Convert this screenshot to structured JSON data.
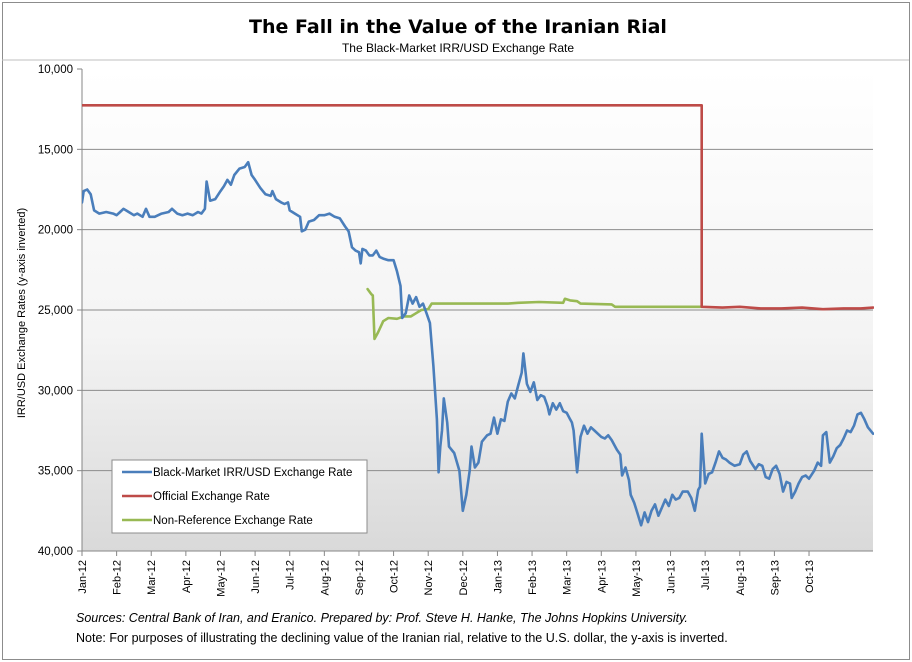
{
  "chart_data": {
    "type": "line",
    "title": "The Fall in the Value of the Iranian Rial",
    "subtitle": "The Black-Market IRR/USD Exchange Rate",
    "ylabel": "IRR/USD Exchange Rates (y-axis inverted)",
    "xlabel": "",
    "ylim": [
      10000,
      40000
    ],
    "y_inverted": true,
    "yticks": [
      "10,000",
      "15,000",
      "20,000",
      "25,000",
      "30,000",
      "35,000",
      "40,000"
    ],
    "ytick_values": [
      10000,
      15000,
      20000,
      25000,
      30000,
      35000,
      40000
    ],
    "xticks": [
      "Jan-12",
      "Feb-12",
      "Mar-12",
      "Apr-12",
      "May-12",
      "Jun-12",
      "Jul-12",
      "Aug-12",
      "Sep-12",
      "Oct-12",
      "Nov-12",
      "Dec-12",
      "Jan-13",
      "Feb-13",
      "Mar-13",
      "Apr-13",
      "May-13",
      "Jun-13",
      "Jul-13",
      "Aug-13",
      "Sep-13",
      "Oct-13"
    ],
    "x_unit": "months since Jan-12",
    "xlim": [
      0,
      22.85
    ],
    "grid": true,
    "legend_position": "bottom-left",
    "series": [
      {
        "name": "Black-Market IRR/USD Exchange Rate",
        "color": "#4a7ebb",
        "points": [
          [
            0,
            18300
          ],
          [
            0.05,
            17600
          ],
          [
            0.15,
            17500
          ],
          [
            0.25,
            17800
          ],
          [
            0.35,
            18800
          ],
          [
            0.5,
            19000
          ],
          [
            0.7,
            18900
          ],
          [
            0.9,
            19000
          ],
          [
            1.0,
            19100
          ],
          [
            1.1,
            18900
          ],
          [
            1.2,
            18700
          ],
          [
            1.35,
            18900
          ],
          [
            1.5,
            19100
          ],
          [
            1.6,
            19000
          ],
          [
            1.75,
            19200
          ],
          [
            1.85,
            18700
          ],
          [
            1.95,
            19200
          ],
          [
            2.1,
            19200
          ],
          [
            2.3,
            19000
          ],
          [
            2.5,
            18900
          ],
          [
            2.6,
            18700
          ],
          [
            2.75,
            19000
          ],
          [
            2.9,
            19100
          ],
          [
            3.05,
            19000
          ],
          [
            3.2,
            19100
          ],
          [
            3.35,
            18900
          ],
          [
            3.45,
            19000
          ],
          [
            3.55,
            18700
          ],
          [
            3.6,
            17000
          ],
          [
            3.7,
            18200
          ],
          [
            3.85,
            18100
          ],
          [
            4.0,
            17600
          ],
          [
            4.1,
            17300
          ],
          [
            4.2,
            16900
          ],
          [
            4.3,
            17200
          ],
          [
            4.4,
            16600
          ],
          [
            4.55,
            16200
          ],
          [
            4.7,
            16100
          ],
          [
            4.8,
            15800
          ],
          [
            4.9,
            16600
          ],
          [
            5.0,
            16900
          ],
          [
            5.15,
            17400
          ],
          [
            5.3,
            17800
          ],
          [
            5.45,
            17900
          ],
          [
            5.5,
            17600
          ],
          [
            5.6,
            18100
          ],
          [
            5.75,
            18300
          ],
          [
            5.85,
            18400
          ],
          [
            5.95,
            18300
          ],
          [
            6.0,
            18800
          ],
          [
            6.15,
            19000
          ],
          [
            6.3,
            19200
          ],
          [
            6.35,
            20100
          ],
          [
            6.45,
            20000
          ],
          [
            6.55,
            19500
          ],
          [
            6.7,
            19400
          ],
          [
            6.85,
            19100
          ],
          [
            7.0,
            19100
          ],
          [
            7.15,
            19000
          ],
          [
            7.3,
            19200
          ],
          [
            7.45,
            19300
          ],
          [
            7.6,
            19800
          ],
          [
            7.7,
            20100
          ],
          [
            7.8,
            21100
          ],
          [
            7.9,
            21300
          ],
          [
            8.0,
            21400
          ],
          [
            8.05,
            22100
          ],
          [
            8.1,
            21200
          ],
          [
            8.2,
            21300
          ],
          [
            8.3,
            21600
          ],
          [
            8.4,
            21600
          ],
          [
            8.5,
            21300
          ],
          [
            8.6,
            21700
          ],
          [
            8.7,
            21800
          ],
          [
            8.85,
            21900
          ],
          [
            9.0,
            21900
          ],
          [
            9.1,
            22600
          ],
          [
            9.2,
            23500
          ],
          [
            9.25,
            25500
          ],
          [
            9.35,
            25200
          ],
          [
            9.45,
            24100
          ],
          [
            9.55,
            24600
          ],
          [
            9.65,
            24200
          ],
          [
            9.75,
            24800
          ],
          [
            9.85,
            24600
          ],
          [
            9.95,
            25200
          ],
          [
            10.05,
            25800
          ],
          [
            10.15,
            28500
          ],
          [
            10.25,
            31800
          ],
          [
            10.3,
            35100
          ],
          [
            10.35,
            33500
          ],
          [
            10.4,
            32500
          ],
          [
            10.45,
            30500
          ],
          [
            10.55,
            32000
          ],
          [
            10.6,
            33500
          ],
          [
            10.75,
            33900
          ],
          [
            10.9,
            35000
          ],
          [
            11.0,
            37500
          ],
          [
            11.1,
            36500
          ],
          [
            11.2,
            35000
          ],
          [
            11.25,
            33500
          ],
          [
            11.35,
            34800
          ],
          [
            11.45,
            34500
          ],
          [
            11.55,
            33200
          ],
          [
            11.7,
            32800
          ],
          [
            11.8,
            32700
          ],
          [
            11.9,
            31700
          ],
          [
            12.0,
            32700
          ],
          [
            12.1,
            31800
          ],
          [
            12.2,
            31900
          ],
          [
            12.3,
            30700
          ],
          [
            12.4,
            30200
          ],
          [
            12.5,
            30500
          ],
          [
            12.6,
            29700
          ],
          [
            12.7,
            28900
          ],
          [
            12.75,
            27700
          ],
          [
            12.85,
            29600
          ],
          [
            12.95,
            30100
          ],
          [
            13.05,
            29500
          ],
          [
            13.15,
            30600
          ],
          [
            13.25,
            30300
          ],
          [
            13.35,
            30400
          ],
          [
            13.45,
            31000
          ],
          [
            13.5,
            31500
          ],
          [
            13.6,
            30800
          ],
          [
            13.7,
            31200
          ],
          [
            13.8,
            30800
          ],
          [
            13.9,
            31300
          ],
          [
            14.0,
            31400
          ],
          [
            14.1,
            31800
          ],
          [
            14.15,
            32000
          ],
          [
            14.2,
            32500
          ],
          [
            14.3,
            35100
          ],
          [
            14.4,
            32900
          ],
          [
            14.5,
            32200
          ],
          [
            14.6,
            32700
          ],
          [
            14.7,
            32300
          ],
          [
            14.8,
            32500
          ],
          [
            14.9,
            32700
          ],
          [
            15.0,
            32900
          ],
          [
            15.1,
            33000
          ],
          [
            15.2,
            32800
          ],
          [
            15.3,
            33100
          ],
          [
            15.45,
            33700
          ],
          [
            15.55,
            34000
          ],
          [
            15.6,
            35300
          ],
          [
            15.7,
            34800
          ],
          [
            15.8,
            35600
          ],
          [
            15.85,
            36500
          ],
          [
            15.95,
            37000
          ],
          [
            16.05,
            37700
          ],
          [
            16.15,
            38400
          ],
          [
            16.25,
            37600
          ],
          [
            16.35,
            38200
          ],
          [
            16.45,
            37500
          ],
          [
            16.55,
            37100
          ],
          [
            16.65,
            37800
          ],
          [
            16.75,
            37300
          ],
          [
            16.85,
            36800
          ],
          [
            16.95,
            37200
          ],
          [
            17.05,
            36500
          ],
          [
            17.15,
            36800
          ],
          [
            17.25,
            36700
          ],
          [
            17.35,
            36300
          ],
          [
            17.5,
            36300
          ],
          [
            17.6,
            36700
          ],
          [
            17.7,
            37500
          ],
          [
            17.8,
            36200
          ],
          [
            17.85,
            36000
          ],
          [
            17.9,
            32700
          ],
          [
            18.0,
            35800
          ],
          [
            18.1,
            35200
          ],
          [
            18.2,
            35100
          ],
          [
            18.3,
            34500
          ],
          [
            18.4,
            33800
          ],
          [
            18.5,
            34200
          ],
          [
            18.6,
            34300
          ],
          [
            18.7,
            34500
          ],
          [
            18.85,
            34700
          ],
          [
            19.0,
            34600
          ],
          [
            19.1,
            34000
          ],
          [
            19.2,
            33800
          ],
          [
            19.3,
            34400
          ],
          [
            19.45,
            34900
          ],
          [
            19.55,
            34600
          ],
          [
            19.65,
            34700
          ],
          [
            19.75,
            35400
          ],
          [
            19.85,
            35500
          ],
          [
            19.95,
            34900
          ],
          [
            20.05,
            34700
          ],
          [
            20.15,
            35200
          ],
          [
            20.25,
            36300
          ],
          [
            20.35,
            35700
          ],
          [
            20.45,
            35800
          ],
          [
            20.5,
            36700
          ],
          [
            20.6,
            36300
          ],
          [
            20.7,
            35800
          ],
          [
            20.8,
            35400
          ],
          [
            20.9,
            35300
          ],
          [
            21.0,
            35500
          ],
          [
            21.15,
            35000
          ],
          [
            21.25,
            34500
          ],
          [
            21.35,
            34700
          ],
          [
            21.4,
            32800
          ],
          [
            21.5,
            32600
          ],
          [
            21.6,
            34500
          ],
          [
            21.7,
            34100
          ],
          [
            21.8,
            33600
          ],
          [
            21.9,
            33400
          ],
          [
            22.0,
            33000
          ],
          [
            22.1,
            32500
          ],
          [
            22.2,
            32600
          ],
          [
            22.3,
            32200
          ],
          [
            22.4,
            31500
          ],
          [
            22.5,
            31400
          ],
          [
            22.6,
            31800
          ],
          [
            22.7,
            32300
          ],
          [
            22.85,
            32700
          ]
        ]
      },
      {
        "name": "Official Exchange Rate",
        "color": "#be4b48",
        "points": [
          [
            0,
            12260
          ],
          [
            17.9,
            12260
          ],
          [
            17.9,
            24800
          ],
          [
            18.5,
            24850
          ],
          [
            19.0,
            24800
          ],
          [
            19.6,
            24900
          ],
          [
            20.2,
            24900
          ],
          [
            20.8,
            24850
          ],
          [
            21.4,
            24950
          ],
          [
            22.0,
            24900
          ],
          [
            22.5,
            24900
          ],
          [
            22.85,
            24850
          ]
        ]
      },
      {
        "name": "Non-Reference Exchange Rate",
        "color": "#98b954",
        "points": [
          [
            8.25,
            23700
          ],
          [
            8.35,
            24000
          ],
          [
            8.4,
            24100
          ],
          [
            8.45,
            26800
          ],
          [
            8.55,
            26400
          ],
          [
            8.7,
            25700
          ],
          [
            8.85,
            25500
          ],
          [
            9.1,
            25550
          ],
          [
            9.3,
            25400
          ],
          [
            9.5,
            25400
          ],
          [
            9.65,
            25200
          ],
          [
            9.8,
            25000
          ],
          [
            10.0,
            24950
          ],
          [
            10.1,
            24600
          ],
          [
            10.4,
            24600
          ],
          [
            11.4,
            24600
          ],
          [
            12.3,
            24600
          ],
          [
            12.6,
            24550
          ],
          [
            13.2,
            24500
          ],
          [
            13.9,
            24550
          ],
          [
            13.95,
            24300
          ],
          [
            14.1,
            24400
          ],
          [
            14.3,
            24450
          ],
          [
            14.4,
            24600
          ],
          [
            15.3,
            24650
          ],
          [
            15.4,
            24800
          ],
          [
            16.5,
            24800
          ],
          [
            17.3,
            24800
          ],
          [
            17.9,
            24800
          ]
        ]
      }
    ]
  },
  "footer": {
    "sources": "Sources: Central Bank of Iran, and Eranico. Prepared by: Prof. Steve H.  Hanke, The Johns Hopkins University.",
    "note": "Note: For purposes of illustrating the declining value of the Iranian rial, relative to the U.S. dollar, the y-axis is inverted."
  },
  "colors": {
    "gridline": "#8c8c8c",
    "plot_top": "#ffffff",
    "plot_bottom": "#d9d9d9"
  }
}
